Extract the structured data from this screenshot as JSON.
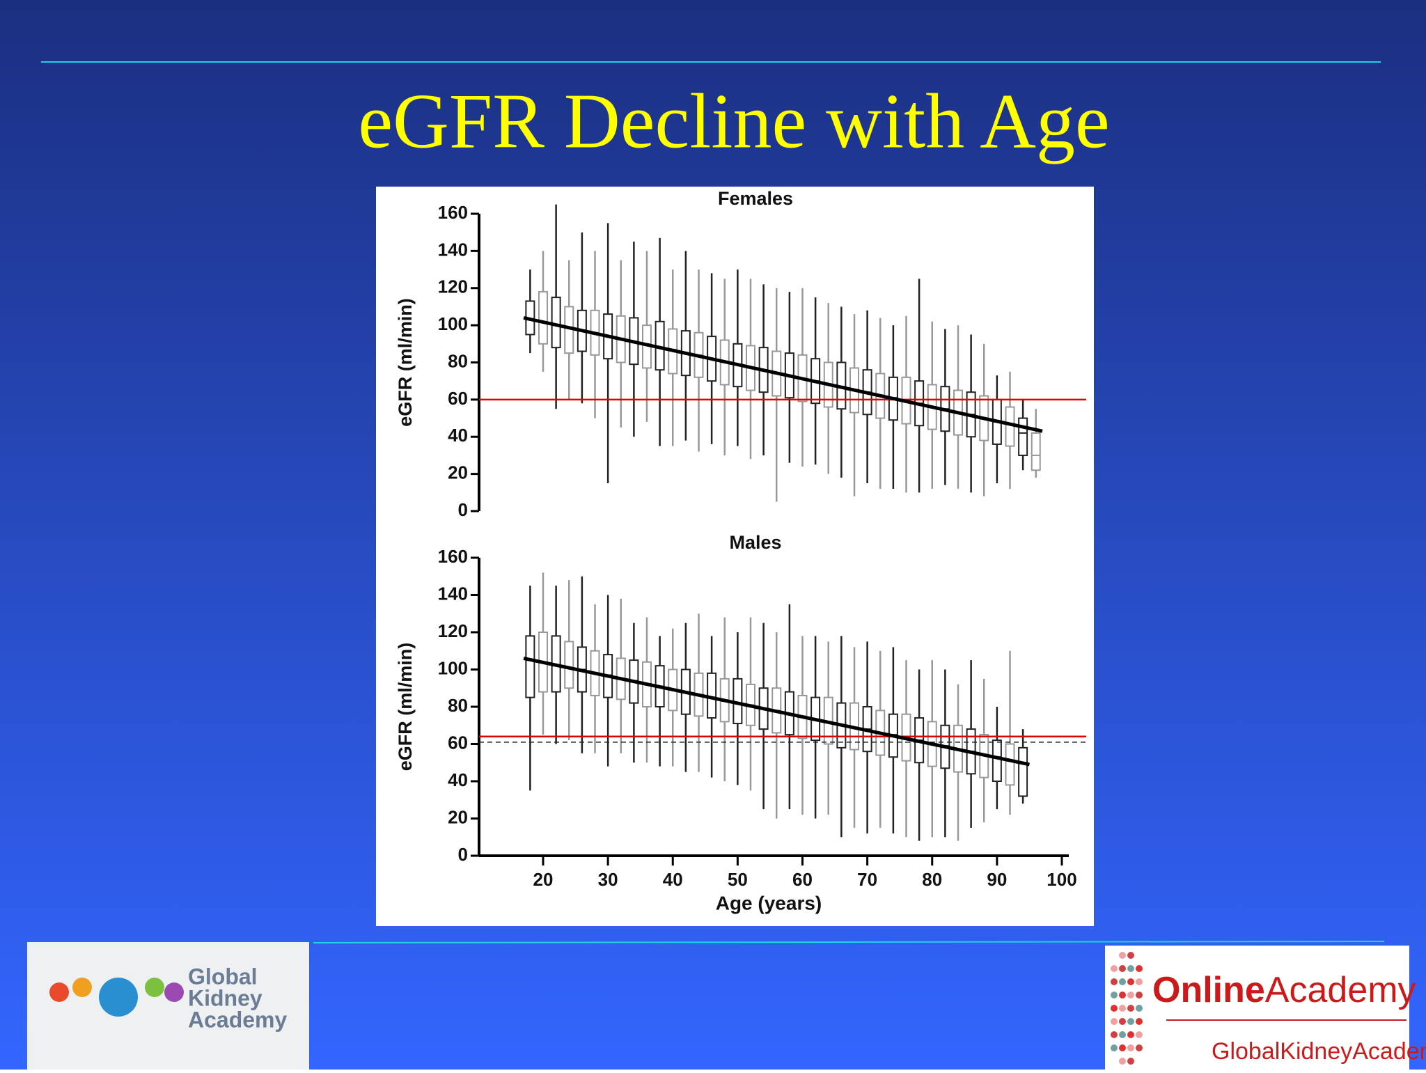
{
  "title": "eGFR Decline with Age",
  "logos": {
    "left": [
      "Global",
      "Kidney",
      "Academy"
    ],
    "right_main": [
      "Online",
      "Academy"
    ],
    "right_sub": "GlobalKidneyAcademy"
  },
  "chart_data": [
    {
      "type": "box",
      "title": "Females",
      "ylabel": "eGFR (ml/min)",
      "xlim": [
        10,
        102
      ],
      "ylim": [
        0,
        160
      ],
      "yticks": [
        0,
        20,
        40,
        60,
        80,
        100,
        120,
        140,
        160
      ],
      "box_colors": [
        "#222222",
        "#999999"
      ],
      "ages": [
        18,
        20,
        22,
        24,
        26,
        28,
        30,
        32,
        34,
        36,
        38,
        40,
        42,
        44,
        46,
        48,
        50,
        52,
        54,
        56,
        58,
        60,
        62,
        64,
        66,
        68,
        70,
        72,
        74,
        76,
        78,
        80,
        82,
        84,
        86,
        88,
        90,
        92,
        94,
        96
      ],
      "boxes": [
        [
          85,
          95,
          103,
          113,
          130
        ],
        [
          75,
          90,
          102,
          118,
          140
        ],
        [
          55,
          88,
          100,
          115,
          165
        ],
        [
          60,
          85,
          99,
          110,
          135
        ],
        [
          58,
          86,
          97,
          108,
          150
        ],
        [
          50,
          84,
          96,
          108,
          140
        ],
        [
          15,
          82,
          94,
          106,
          155
        ],
        [
          45,
          80,
          93,
          105,
          135
        ],
        [
          40,
          79,
          91,
          104,
          145
        ],
        [
          48,
          77,
          90,
          100,
          140
        ],
        [
          35,
          76,
          88,
          102,
          147
        ],
        [
          35,
          74,
          87,
          98,
          130
        ],
        [
          38,
          73,
          85,
          97,
          140
        ],
        [
          32,
          72,
          84,
          96,
          130
        ],
        [
          36,
          70,
          82,
          94,
          128
        ],
        [
          30,
          68,
          80,
          92,
          125
        ],
        [
          35,
          67,
          79,
          90,
          130
        ],
        [
          28,
          65,
          77,
          89,
          125
        ],
        [
          30,
          64,
          76,
          88,
          122
        ],
        [
          5,
          62,
          74,
          86,
          120
        ],
        [
          26,
          61,
          73,
          85,
          118
        ],
        [
          24,
          59,
          71,
          84,
          120
        ],
        [
          25,
          58,
          70,
          82,
          115
        ],
        [
          20,
          56,
          68,
          80,
          112
        ],
        [
          18,
          55,
          67,
          80,
          110
        ],
        [
          8,
          53,
          65,
          77,
          106
        ],
        [
          15,
          52,
          64,
          76,
          108
        ],
        [
          12,
          50,
          62,
          74,
          104
        ],
        [
          12,
          49,
          61,
          72,
          100
        ],
        [
          10,
          47,
          59,
          72,
          105
        ],
        [
          10,
          46,
          58,
          70,
          125
        ],
        [
          12,
          44,
          56,
          68,
          102
        ],
        [
          14,
          43,
          55,
          67,
          98
        ],
        [
          12,
          41,
          53,
          65,
          100
        ],
        [
          10,
          40,
          52,
          64,
          95
        ],
        [
          8,
          38,
          50,
          62,
          90
        ],
        [
          15,
          36,
          48,
          60,
          73
        ],
        [
          12,
          35,
          47,
          56,
          75
        ],
        [
          22,
          30,
          42,
          50,
          60
        ],
        [
          18,
          22,
          30,
          42,
          55
        ]
      ],
      "trend": {
        "x": [
          17,
          97
        ],
        "y": [
          104,
          43
        ],
        "color": "#000000"
      },
      "hlines": [
        {
          "value": 60,
          "color": "#e00000"
        }
      ]
    },
    {
      "type": "box",
      "title": "Males",
      "ylabel": "eGFR (ml/min)",
      "xlabel": "Age (years)",
      "xlim": [
        10,
        102
      ],
      "ylim": [
        0,
        160
      ],
      "yticks": [
        0,
        20,
        40,
        60,
        80,
        100,
        120,
        140,
        160
      ],
      "xticks": [
        20,
        30,
        40,
        50,
        60,
        70,
        80,
        90,
        100
      ],
      "box_colors": [
        "#222222",
        "#999999"
      ],
      "ages": [
        18,
        20,
        22,
        24,
        26,
        28,
        30,
        32,
        34,
        36,
        38,
        40,
        42,
        44,
        46,
        48,
        50,
        52,
        54,
        56,
        58,
        60,
        62,
        64,
        66,
        68,
        70,
        72,
        74,
        76,
        78,
        80,
        82,
        84,
        86,
        88,
        90,
        92,
        94
      ],
      "boxes": [
        [
          35,
          85,
          105,
          118,
          145
        ],
        [
          65,
          88,
          104,
          120,
          152
        ],
        [
          60,
          88,
          102,
          118,
          145
        ],
        [
          62,
          90,
          101,
          115,
          148
        ],
        [
          55,
          88,
          100,
          112,
          150
        ],
        [
          55,
          86,
          98,
          110,
          135
        ],
        [
          48,
          85,
          97,
          108,
          140
        ],
        [
          55,
          84,
          95,
          106,
          138
        ],
        [
          50,
          82,
          94,
          105,
          125
        ],
        [
          50,
          80,
          92,
          104,
          128
        ],
        [
          48,
          80,
          91,
          102,
          118
        ],
        [
          48,
          78,
          89,
          100,
          122
        ],
        [
          45,
          76,
          88,
          100,
          125
        ],
        [
          45,
          75,
          86,
          98,
          130
        ],
        [
          42,
          74,
          85,
          98,
          118
        ],
        [
          40,
          72,
          83,
          95,
          128
        ],
        [
          38,
          71,
          82,
          95,
          120
        ],
        [
          35,
          70,
          81,
          92,
          128
        ],
        [
          25,
          68,
          79,
          90,
          125
        ],
        [
          20,
          66,
          78,
          90,
          120
        ],
        [
          25,
          65,
          76,
          88,
          135
        ],
        [
          22,
          63,
          75,
          86,
          118
        ],
        [
          20,
          62,
          73,
          85,
          118
        ],
        [
          22,
          60,
          72,
          85,
          115
        ],
        [
          10,
          58,
          70,
          82,
          118
        ],
        [
          15,
          57,
          69,
          82,
          112
        ],
        [
          12,
          56,
          68,
          80,
          115
        ],
        [
          15,
          54,
          66,
          78,
          110
        ],
        [
          12,
          53,
          65,
          76,
          112
        ],
        [
          10,
          51,
          63,
          76,
          105
        ],
        [
          8,
          50,
          62,
          74,
          100
        ],
        [
          10,
          48,
          60,
          72,
          105
        ],
        [
          10,
          47,
          59,
          70,
          100
        ],
        [
          8,
          45,
          57,
          70,
          92
        ],
        [
          15,
          44,
          56,
          68,
          105
        ],
        [
          18,
          42,
          54,
          65,
          95
        ],
        [
          25,
          40,
          53,
          62,
          80
        ],
        [
          22,
          38,
          51,
          60,
          110
        ],
        [
          28,
          32,
          50,
          58,
          68
        ]
      ],
      "trend": {
        "x": [
          17,
          95
        ],
        "y": [
          106,
          49
        ],
        "color": "#000000"
      },
      "hlines": [
        {
          "value": 64,
          "color": "#e00000"
        },
        {
          "value": 61,
          "color": "#222222",
          "dashed": true
        }
      ]
    }
  ]
}
